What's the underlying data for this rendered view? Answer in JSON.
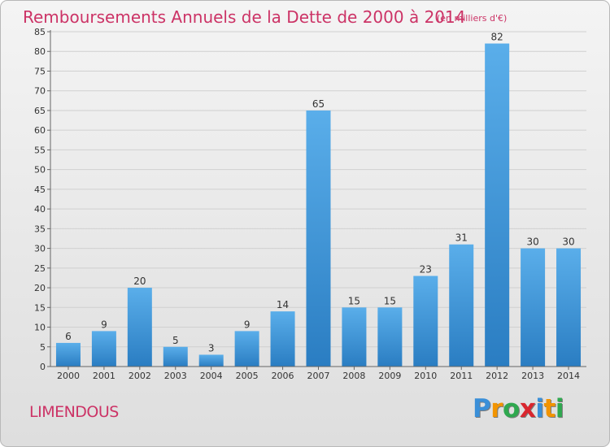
{
  "header": {
    "title": "Remboursements Annuels de la Dette de 2000 à 2014",
    "subtitle": "(en milliers d'€)"
  },
  "footer": {
    "commune": "LIMENDOUS",
    "logo": {
      "letters": [
        "P",
        "r",
        "o",
        "x",
        "i",
        "t",
        "i"
      ],
      "colors": [
        "#3a8fd8",
        "#f29400",
        "#2fa84f",
        "#d9262e",
        "#3a8fd8",
        "#f29400",
        "#2fa84f"
      ]
    }
  },
  "colors": {
    "bar_light": "#5aaeea",
    "bar_dark": "#2a7dc2",
    "title": "#cc3366",
    "grid": "#d0d0d0",
    "axis_text": "#333333"
  },
  "chart_data": {
    "type": "bar",
    "categories": [
      "2000",
      "2001",
      "2002",
      "2003",
      "2004",
      "2005",
      "2006",
      "2007",
      "2008",
      "2009",
      "2010",
      "2011",
      "2012",
      "2013",
      "2014"
    ],
    "values": [
      6,
      9,
      20,
      5,
      3,
      9,
      14,
      65,
      15,
      15,
      23,
      31,
      82,
      30,
      30
    ],
    "data_labels": [
      "6",
      "9",
      "20",
      "5",
      "3",
      "9",
      "14",
      "65",
      "15",
      "15",
      "23",
      "31",
      "82",
      "30",
      "30"
    ],
    "title": "Remboursements Annuels de la Dette de 2000 à 2014",
    "xlabel": "",
    "ylabel": "",
    "ylim": [
      0,
      85
    ],
    "yticks": [
      0,
      5,
      10,
      15,
      20,
      25,
      30,
      35,
      40,
      45,
      50,
      55,
      60,
      65,
      70,
      75,
      80,
      85
    ],
    "grid": true
  }
}
